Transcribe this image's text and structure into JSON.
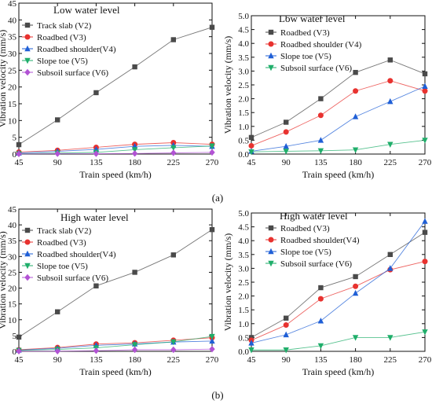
{
  "figure": {
    "label_a": "(a)",
    "label_b": "(b)"
  },
  "chart_data": [
    {
      "type": "line",
      "title": "Low water level",
      "xlabel": "Train speed (km/h)",
      "ylabel": "Vibration velocity (mm/s)",
      "xlim": [
        45,
        270
      ],
      "ylim": [
        0,
        45
      ],
      "xticks": [
        45,
        90,
        135,
        180,
        225,
        270
      ],
      "yticks": [
        0,
        5,
        10,
        15,
        20,
        25,
        30,
        35,
        40,
        45
      ],
      "legend": "top-left",
      "x": [
        45,
        90,
        135,
        180,
        225,
        270
      ],
      "series": [
        {
          "name": "Track slab (V2)",
          "color": "#4a4a4a",
          "marker": "square",
          "values": [
            2.8,
            10.2,
            18.3,
            26.0,
            34.1,
            37.8
          ]
        },
        {
          "name": "Roadbed (V3)",
          "color": "#e8322f",
          "marker": "circle",
          "values": [
            0.6,
            1.1,
            2.0,
            2.9,
            3.4,
            2.9
          ]
        },
        {
          "name": "Roadbed shoulder(V4)",
          "color": "#1f5fd6",
          "marker": "triangle-up",
          "values": [
            0.3,
            0.8,
            1.4,
            2.3,
            2.6,
            2.3
          ]
        },
        {
          "name": "Slope toe (V5)",
          "color": "#1fae6a",
          "marker": "triangle-down",
          "values": [
            0.1,
            0.3,
            0.5,
            1.3,
            1.9,
            2.4
          ]
        },
        {
          "name": "Subsoil surface (V6)",
          "color": "#b253d4",
          "marker": "diamond",
          "values": [
            0.05,
            0.1,
            0.1,
            0.15,
            0.35,
            0.5
          ]
        }
      ]
    },
    {
      "type": "line",
      "title": "Low water level",
      "xlabel": "Train speed (km/h)",
      "ylabel": "Vibration velocity (mm/s)",
      "xlim": [
        45,
        270
      ],
      "ylim": [
        0,
        5
      ],
      "xticks": [
        45,
        90,
        135,
        180,
        225,
        270
      ],
      "yticks": [
        0,
        0.5,
        1.0,
        1.5,
        2.0,
        2.5,
        3.0,
        3.5,
        4.0,
        4.5,
        5.0
      ],
      "legend": "top-center",
      "x": [
        45,
        90,
        135,
        180,
        225,
        270
      ],
      "series": [
        {
          "name": "Roadbed (V3)",
          "color": "#4a4a4a",
          "marker": "square",
          "values": [
            0.6,
            1.15,
            2.0,
            2.95,
            3.4,
            2.9
          ]
        },
        {
          "name": "Roadbed shoulder (V4)",
          "color": "#e8322f",
          "marker": "circle",
          "values": [
            0.3,
            0.8,
            1.4,
            2.28,
            2.65,
            2.28
          ]
        },
        {
          "name": "Slope toe (V5)",
          "color": "#1f5fd6",
          "marker": "triangle-up",
          "values": [
            0.1,
            0.28,
            0.5,
            1.35,
            1.9,
            2.45
          ]
        },
        {
          "name": "Subsoil surface (V6)",
          "color": "#1fae6a",
          "marker": "triangle-down",
          "values": [
            0.08,
            0.1,
            0.12,
            0.15,
            0.35,
            0.5
          ]
        }
      ]
    },
    {
      "type": "line",
      "title": "High water level",
      "xlabel": "Train speed (km/h)",
      "ylabel": "Vibration velocity (mm/s)",
      "xlim": [
        45,
        270
      ],
      "ylim": [
        0,
        45
      ],
      "xticks": [
        45,
        90,
        135,
        180,
        225,
        270
      ],
      "yticks": [
        0,
        5,
        10,
        15,
        20,
        25,
        30,
        35,
        40,
        45
      ],
      "legend": "top-left",
      "x": [
        45,
        90,
        135,
        180,
        225,
        270
      ],
      "series": [
        {
          "name": "Track slab (V2)",
          "color": "#4a4a4a",
          "marker": "square",
          "values": [
            4.5,
            12.5,
            20.7,
            25.0,
            30.5,
            38.5
          ]
        },
        {
          "name": "Roadbed (V3)",
          "color": "#e8322f",
          "marker": "circle",
          "values": [
            0.5,
            1.2,
            2.3,
            2.7,
            3.5,
            4.3
          ]
        },
        {
          "name": "Roadbed shoulder(V4)",
          "color": "#1f5fd6",
          "marker": "triangle-up",
          "values": [
            0.4,
            0.95,
            1.9,
            2.35,
            2.95,
            3.25
          ]
        },
        {
          "name": "Slope toe (V5)",
          "color": "#1fae6a",
          "marker": "triangle-down",
          "values": [
            0.3,
            0.6,
            1.1,
            2.1,
            3.0,
            4.7
          ]
        },
        {
          "name": "Subsoil surface (V6)",
          "color": "#b253d4",
          "marker": "diamond",
          "values": [
            0.05,
            0.05,
            0.2,
            0.5,
            0.5,
            0.7
          ]
        }
      ]
    },
    {
      "type": "line",
      "title": "High water level",
      "xlabel": "Train speed (km/h)",
      "ylabel": "Vibration velocity (mm/s)",
      "xlim": [
        45,
        270
      ],
      "ylim": [
        0,
        5
      ],
      "xticks": [
        45,
        90,
        135,
        180,
        225,
        270
      ],
      "yticks": [
        0,
        0.5,
        1.0,
        1.5,
        2.0,
        2.5,
        3.0,
        3.5,
        4.0,
        4.5,
        5.0
      ],
      "legend": "top-center",
      "x": [
        45,
        90,
        135,
        180,
        225,
        270
      ],
      "series": [
        {
          "name": "Roadbed (V3)",
          "color": "#4a4a4a",
          "marker": "square",
          "values": [
            0.5,
            1.2,
            2.3,
            2.7,
            3.5,
            4.3
          ]
        },
        {
          "name": "Roadbed shoulder(V4)",
          "color": "#e8322f",
          "marker": "circle",
          "values": [
            0.4,
            0.95,
            1.9,
            2.35,
            2.95,
            3.25
          ]
        },
        {
          "name": "Slope toe (V5)",
          "color": "#1f5fd6",
          "marker": "triangle-up",
          "values": [
            0.3,
            0.6,
            1.1,
            2.1,
            3.0,
            4.7
          ]
        },
        {
          "name": "Subsoil surface (V6)",
          "color": "#1fae6a",
          "marker": "triangle-down",
          "values": [
            0.05,
            0.05,
            0.2,
            0.5,
            0.5,
            0.7
          ]
        }
      ]
    }
  ]
}
